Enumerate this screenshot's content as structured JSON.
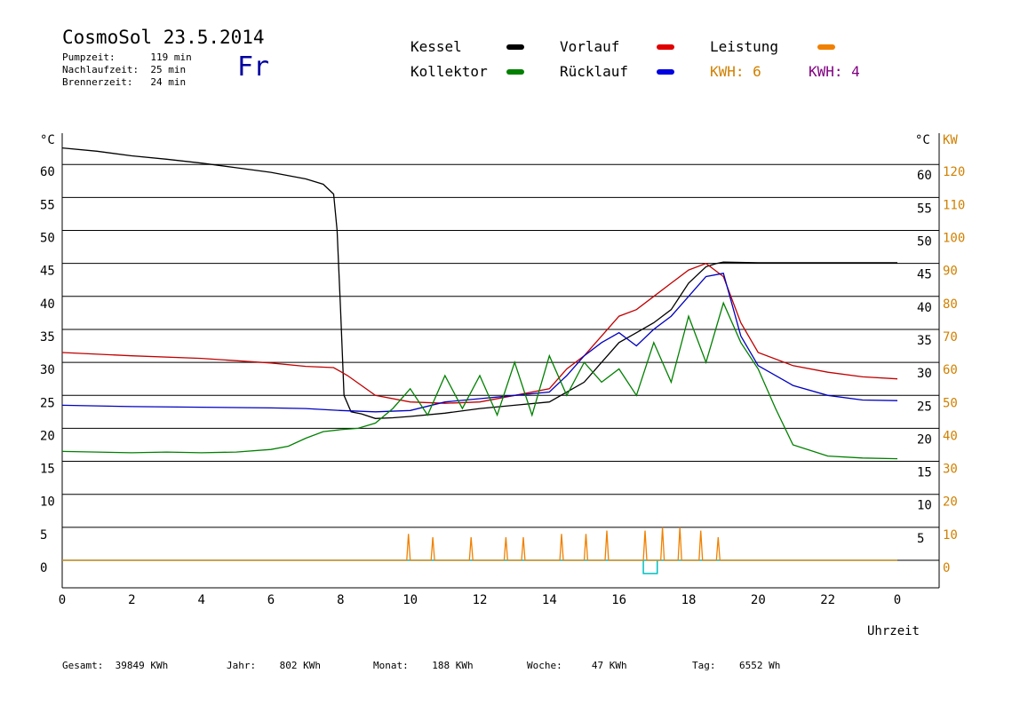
{
  "header": {
    "title": "CosmoSol 23.5.2014",
    "info": [
      {
        "label": "Pumpzeit:",
        "value": "119 min"
      },
      {
        "label": "Nachlaufzeit:",
        "value": "25 min"
      },
      {
        "label": "Brennerzeit:",
        "value": "24 min"
      }
    ],
    "weekday": "Fr"
  },
  "legend": {
    "items": [
      {
        "name": "Kessel",
        "color": "#000000"
      },
      {
        "name": "Kollektor",
        "color": "#008000"
      },
      {
        "name": "Vorlauf",
        "color": "#e00000"
      },
      {
        "name": "Rücklauf",
        "color": "#0000e0"
      },
      {
        "name": "Leistung",
        "color": "#f08000"
      }
    ],
    "kwh_orange": "KWH: 6",
    "kwh_purple": "KWH: 4",
    "kwh_orange_color": "#d08000",
    "kwh_purple_color": "#800080"
  },
  "footer": {
    "gesamt": "Gesamt:  39849 KWh",
    "jahr": "Jahr:    802 KWh",
    "monat": "Monat:    188 KWh",
    "woche": "Woche:     47 KWh",
    "tag": "Tag:    6552 Wh"
  },
  "chart_data": {
    "type": "line",
    "xlabel": "Uhrzeit",
    "ylabel_left": "°C",
    "ylabel_right_temp": "°C",
    "ylabel_right_power": "KW",
    "xlim": [
      0,
      24
    ],
    "ylim": [
      -4,
      65
    ],
    "x_ticks": [
      "0",
      "2",
      "4",
      "6",
      "8",
      "10",
      "12",
      "14",
      "16",
      "18",
      "20",
      "22",
      "0"
    ],
    "y_ticks_left": [
      0,
      5,
      10,
      15,
      20,
      25,
      30,
      35,
      40,
      45,
      50,
      55,
      60
    ],
    "y_ticks_right_temp": [
      5,
      10,
      15,
      20,
      25,
      30,
      35,
      40,
      45,
      50,
      55,
      60
    ],
    "y_ticks_right_power": [
      0,
      10,
      20,
      30,
      40,
      50,
      60,
      70,
      80,
      90,
      100,
      110,
      120
    ],
    "grid": true,
    "series": [
      {
        "name": "Kessel",
        "color": "#000000",
        "x": [
          0,
          1,
          2,
          3,
          4,
          5,
          6,
          7,
          7.5,
          7.8,
          7.9,
          8.0,
          8.1,
          8.3,
          8.6,
          9.0,
          9.5,
          10,
          11,
          12,
          13,
          14,
          15,
          15.5,
          16,
          16.5,
          17,
          17.5,
          18,
          18.5,
          18.8,
          19,
          20,
          21,
          22,
          23,
          24
        ],
        "y": [
          62.5,
          62,
          61.3,
          60.8,
          60.2,
          59.5,
          58.8,
          57.8,
          57.0,
          55.5,
          50,
          38,
          25,
          22.5,
          22.2,
          21.5,
          21.6,
          21.8,
          22.3,
          23,
          23.5,
          24,
          27,
          30,
          33,
          34.5,
          36,
          38,
          42,
          44.5,
          45,
          45.2,
          45.1,
          45.1,
          45.1,
          45.1,
          45.1
        ]
      },
      {
        "name": "Vorlauf",
        "color": "#c00000",
        "x": [
          0,
          2,
          4,
          6,
          7,
          7.8,
          8.2,
          9,
          10,
          11,
          12,
          13,
          14,
          14.5,
          15,
          15.5,
          16,
          16.5,
          17,
          17.5,
          18,
          18.5,
          19,
          19.5,
          20,
          21,
          22,
          23,
          24
        ],
        "y": [
          31.5,
          31,
          30.6,
          29.9,
          29.4,
          29.2,
          28,
          25,
          24,
          23.8,
          24,
          25,
          26,
          29,
          31,
          34,
          37,
          38,
          40,
          42,
          44,
          45,
          43,
          36,
          31.5,
          29.5,
          28.5,
          27.8,
          27.5
        ]
      },
      {
        "name": "Rücklauf",
        "color": "#0000c0",
        "x": [
          0,
          2,
          4,
          6,
          7,
          8,
          9,
          10,
          11,
          12,
          13,
          14,
          14.5,
          15,
          15.5,
          16,
          16.5,
          17,
          17.5,
          18,
          18.5,
          19,
          19.5,
          20,
          21,
          22,
          23,
          24
        ],
        "y": [
          23.5,
          23.3,
          23.2,
          23.1,
          23.0,
          22.7,
          22.5,
          22.7,
          24,
          24.5,
          25,
          25.5,
          28,
          31,
          33,
          34.5,
          32.5,
          35,
          37,
          40,
          43,
          43.5,
          34,
          29.5,
          26.5,
          25,
          24.3,
          24.2
        ]
      },
      {
        "name": "Kollektor",
        "color": "#008000",
        "x": [
          0,
          1,
          2,
          3,
          4,
          5,
          6,
          6.5,
          7,
          7.5,
          8,
          8.5,
          9,
          9.5,
          10,
          10.5,
          11,
          11.5,
          12,
          12.5,
          13,
          13.5,
          14,
          14.5,
          15,
          15.5,
          16,
          16.5,
          17,
          17.5,
          18,
          18.5,
          19,
          19.5,
          20,
          20.5,
          21,
          22,
          23,
          24
        ],
        "y": [
          16.5,
          16.4,
          16.3,
          16.4,
          16.3,
          16.4,
          16.8,
          17.3,
          18.5,
          19.5,
          19.8,
          20,
          20.8,
          23,
          26,
          22,
          28,
          23,
          28,
          22,
          30,
          22,
          31,
          25,
          30,
          27,
          29,
          25,
          33,
          27,
          37,
          30,
          39,
          33,
          29,
          23,
          17.5,
          15.8,
          15.5,
          15.4
        ]
      },
      {
        "name": "Leistung",
        "color": "#f08000",
        "x": [
          0,
          9.9,
          9.95,
          10,
          10.6,
          10.65,
          10.7,
          11.7,
          11.75,
          11.8,
          12.7,
          12.75,
          12.8,
          13.2,
          13.25,
          13.3,
          14.3,
          14.35,
          14.4,
          15.0,
          15.05,
          15.1,
          15.6,
          15.65,
          15.7,
          16.7,
          16.75,
          16.8,
          17.2,
          17.25,
          17.3,
          17.7,
          17.75,
          17.8,
          18.3,
          18.35,
          18.4,
          18.8,
          18.85,
          18.9,
          24
        ],
        "y": [
          0,
          0,
          4,
          0,
          0,
          3.5,
          0,
          0,
          3.5,
          0,
          0,
          3.5,
          0,
          0,
          3.5,
          0,
          0,
          4,
          0,
          0,
          4,
          0,
          0,
          4.5,
          0,
          0,
          4.5,
          0,
          0,
          5,
          0,
          0,
          5,
          0,
          0,
          4.5,
          0,
          0,
          3.5,
          0,
          0
        ]
      }
    ]
  }
}
